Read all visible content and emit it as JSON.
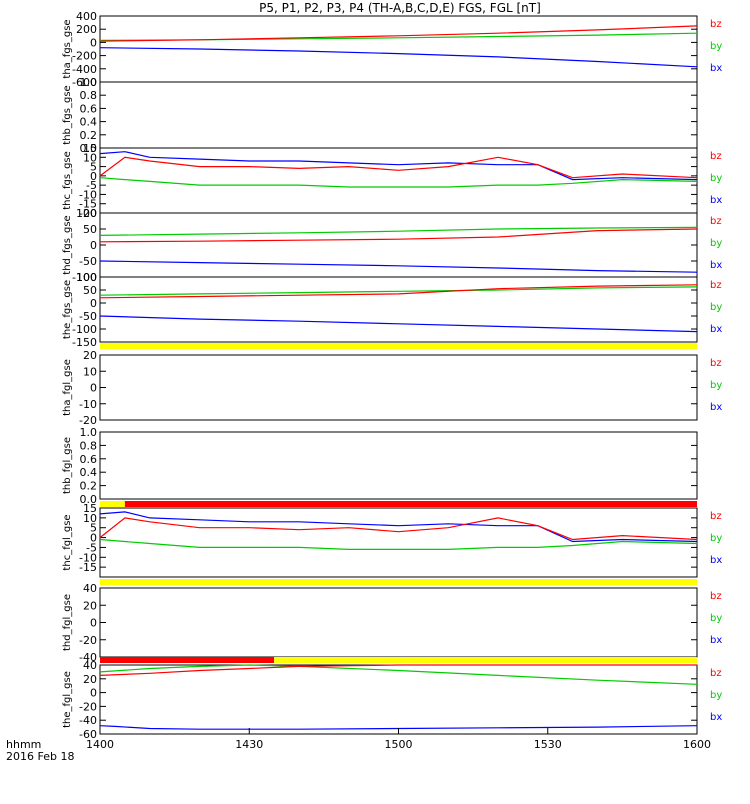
{
  "title": "P5, P1, P2, P3, P4 (TH-A,B,C,D,E) FGS, FGL [nT]",
  "colors": {
    "bx": "#0000ff",
    "by": "#00cc00",
    "bz": "#ff0000",
    "bar_yellow": "#ffff00",
    "bar_red": "#ff0000"
  },
  "chart_data": {
    "type": "line",
    "x_axis": {
      "ticks": [
        "1400",
        "1430",
        "1500",
        "1530",
        "1600"
      ],
      "range_minutes": [
        0,
        120
      ]
    },
    "footer": {
      "label": "hhmm",
      "date": "2016 Feb 18"
    },
    "panels": [
      {
        "ylabel": "tha_fgs_gse",
        "ylim": [
          -600,
          400
        ],
        "yticks": [
          "400",
          "200",
          "0",
          "-200",
          "-400",
          "-600"
        ],
        "legend": [
          "bz",
          "by",
          "bx"
        ],
        "series": [
          {
            "name": "bx",
            "x": [
              0,
              20,
              40,
              60,
              80,
              100,
              120
            ],
            "values": [
              -80,
              -100,
              -130,
              -170,
              -220,
              -290,
              -370
            ]
          },
          {
            "name": "by",
            "x": [
              0,
              20,
              40,
              60,
              80,
              100,
              120
            ],
            "values": [
              30,
              40,
              55,
              70,
              90,
              110,
              140
            ]
          },
          {
            "name": "bz",
            "x": [
              0,
              20,
              40,
              60,
              80,
              100,
              120
            ],
            "values": [
              20,
              40,
              70,
              100,
              140,
              190,
              250
            ]
          }
        ]
      },
      {
        "ylabel": "thb_fgs_gse",
        "ylim": [
          0,
          1
        ],
        "yticks": [
          "1.0",
          "0.8",
          "0.6",
          "0.4",
          "0.2",
          "0.0"
        ],
        "legend": [],
        "series": []
      },
      {
        "ylabel": "thc_fgs_gse",
        "ylim": [
          -20,
          15
        ],
        "yticks": [
          "15",
          "10",
          "5",
          "0",
          "-5",
          "-10",
          "-15",
          "-20"
        ],
        "legend": [
          "bz",
          "by",
          "bx"
        ],
        "series": [
          {
            "name": "bx",
            "x": [
              0,
              5,
              10,
              20,
              30,
              40,
              50,
              60,
              70,
              80,
              88,
              95,
              105,
              120
            ],
            "values": [
              12,
              13,
              10,
              9,
              8,
              8,
              7,
              6,
              7,
              6,
              6,
              -2,
              -1,
              -2
            ]
          },
          {
            "name": "by",
            "x": [
              0,
              5,
              10,
              20,
              30,
              40,
              50,
              60,
              70,
              80,
              88,
              95,
              105,
              120
            ],
            "values": [
              -1,
              -2,
              -3,
              -5,
              -5,
              -5,
              -6,
              -6,
              -6,
              -5,
              -5,
              -4,
              -2,
              -3
            ]
          },
          {
            "name": "bz",
            "x": [
              0,
              5,
              10,
              20,
              30,
              40,
              50,
              60,
              70,
              80,
              88,
              95,
              105,
              120
            ],
            "values": [
              0,
              10,
              8,
              5,
              5,
              4,
              5,
              3,
              5,
              10,
              6,
              -1,
              1,
              -1
            ]
          }
        ]
      },
      {
        "ylabel": "thd_fgs_gse",
        "ylim": [
          -100,
          100
        ],
        "yticks": [
          "100",
          "50",
          "0",
          "-50",
          "-100"
        ],
        "legend": [
          "bz",
          "by",
          "bx"
        ],
        "series": [
          {
            "name": "bx",
            "x": [
              0,
              20,
              40,
              60,
              80,
              100,
              120
            ],
            "values": [
              -50,
              -55,
              -60,
              -65,
              -72,
              -80,
              -85
            ]
          },
          {
            "name": "by",
            "x": [
              0,
              20,
              40,
              60,
              80,
              100,
              120
            ],
            "values": [
              30,
              34,
              38,
              43,
              50,
              53,
              55
            ]
          },
          {
            "name": "bz",
            "x": [
              0,
              20,
              40,
              60,
              80,
              100,
              120
            ],
            "values": [
              10,
              12,
              15,
              18,
              25,
              45,
              50
            ]
          }
        ]
      },
      {
        "ylabel": "the_fgs_gse",
        "ylim": [
          -150,
          100
        ],
        "yticks": [
          "100",
          "50",
          "0",
          "-50",
          "-100",
          "-150"
        ],
        "legend": [
          "bz",
          "by",
          "bx"
        ],
        "series": [
          {
            "name": "bx",
            "x": [
              0,
              20,
              40,
              60,
              80,
              100,
              120
            ],
            "values": [
              -50,
              -62,
              -70,
              -80,
              -90,
              -100,
              -110
            ]
          },
          {
            "name": "by",
            "x": [
              0,
              20,
              40,
              60,
              80,
              100,
              120
            ],
            "values": [
              30,
              35,
              40,
              45,
              50,
              58,
              62
            ]
          },
          {
            "name": "bz",
            "x": [
              0,
              20,
              40,
              60,
              80,
              100,
              120
            ],
            "values": [
              20,
              25,
              30,
              35,
              55,
              65,
              70
            ]
          }
        ]
      },
      {
        "ylabel": "tha_fgl_gse",
        "ylim": [
          -20,
          20
        ],
        "yticks": [
          "20",
          "10",
          "0",
          "-10",
          "-20"
        ],
        "legend": [
          "bz",
          "by",
          "bx"
        ],
        "series": []
      },
      {
        "ylabel": "thb_fgl_gse",
        "ylim": [
          0,
          1
        ],
        "yticks": [
          "1.0",
          "0.8",
          "0.6",
          "0.4",
          "0.2",
          "0.0"
        ],
        "legend": [],
        "series": []
      },
      {
        "ylabel": "thc_fgl_gse",
        "ylim": [
          -20,
          15
        ],
        "yticks": [
          "15",
          "10",
          "5",
          "0",
          "-5",
          "-10",
          "-15"
        ],
        "legend": [
          "bz",
          "by",
          "bx"
        ],
        "series": [
          {
            "name": "bx",
            "x": [
              0,
              5,
              10,
              20,
              30,
              40,
              50,
              60,
              70,
              80,
              88,
              95,
              105,
              120
            ],
            "values": [
              12,
              13,
              10,
              9,
              8,
              8,
              7,
              6,
              7,
              6,
              6,
              -2,
              -1,
              -2
            ]
          },
          {
            "name": "by",
            "x": [
              0,
              5,
              10,
              20,
              30,
              40,
              50,
              60,
              70,
              80,
              88,
              95,
              105,
              120
            ],
            "values": [
              -1,
              -2,
              -3,
              -5,
              -5,
              -5,
              -6,
              -6,
              -6,
              -5,
              -5,
              -4,
              -2,
              -3
            ]
          },
          {
            "name": "bz",
            "x": [
              0,
              5,
              10,
              20,
              30,
              40,
              50,
              60,
              70,
              80,
              88,
              95,
              105,
              120
            ],
            "values": [
              0,
              10,
              8,
              5,
              5,
              4,
              5,
              3,
              5,
              10,
              6,
              -1,
              1,
              -1
            ]
          }
        ]
      },
      {
        "ylabel": "thd_fgl_gse",
        "ylim": [
          -40,
          40
        ],
        "yticks": [
          "40",
          "20",
          "0",
          "-20",
          "-40"
        ],
        "legend": [
          "bz",
          "by",
          "bx"
        ],
        "series": []
      },
      {
        "ylabel": "the_fgl_gse",
        "ylim": [
          -60,
          40
        ],
        "yticks": [
          "40",
          "20",
          "0",
          "-20",
          "-40",
          "-60"
        ],
        "legend": [
          "bz",
          "by",
          "bx"
        ],
        "series": [
          {
            "name": "bx",
            "x": [
              0,
              3,
              10,
              20,
              40,
              60,
              80,
              100,
              120
            ],
            "values": [
              -48,
              -49,
              -52,
              -53,
              -53,
              -52,
              -51,
              -50,
              -48
            ]
          },
          {
            "name": "by",
            "x": [
              0,
              10,
              20,
              30,
              40,
              60,
              80,
              100,
              120
            ],
            "values": [
              30,
              35,
              38,
              40,
              38,
              32,
              25,
              18,
              12
            ]
          },
          {
            "name": "bz",
            "x": [
              0,
              10,
              20,
              30,
              40,
              60,
              80,
              100,
              120
            ],
            "values": [
              25,
              28,
              32,
              35,
              38,
              40,
              42,
              44,
              46
            ]
          }
        ]
      }
    ],
    "status_bars": [
      {
        "after_panel": 4,
        "segments": [
          {
            "from_min": 0,
            "to_min": 120,
            "color": "yellow"
          }
        ]
      },
      {
        "after_panel": 6,
        "segments": [
          {
            "from_min": 0,
            "to_min": 5,
            "color": "yellow"
          },
          {
            "from_min": 5,
            "to_min": 120,
            "color": "red"
          }
        ]
      },
      {
        "after_panel": 7,
        "segments": [
          {
            "from_min": 0,
            "to_min": 120,
            "color": "yellow"
          }
        ]
      },
      {
        "after_panel": 8,
        "segments": [
          {
            "from_min": 0,
            "to_min": 35,
            "color": "red"
          },
          {
            "from_min": 35,
            "to_min": 120,
            "color": "yellow"
          }
        ]
      }
    ]
  }
}
